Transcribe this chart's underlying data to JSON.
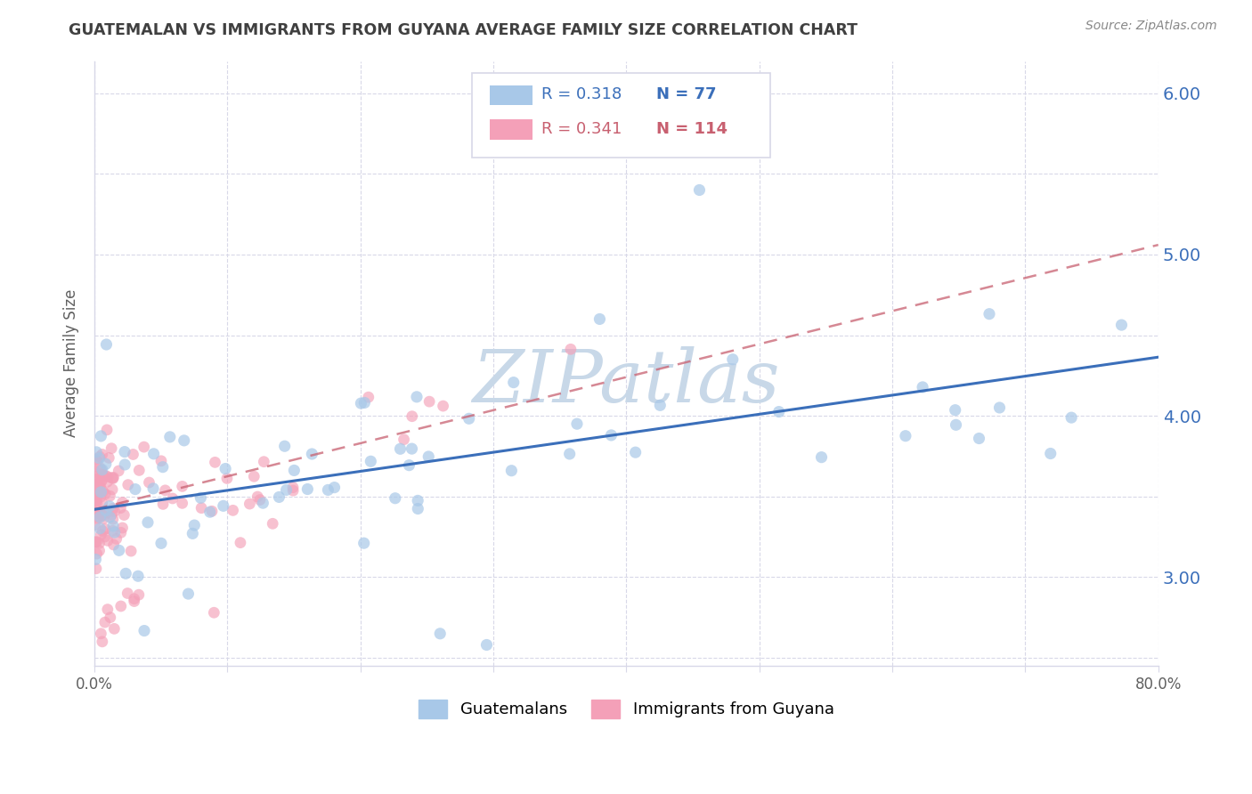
{
  "title": "GUATEMALAN VS IMMIGRANTS FROM GUYANA AVERAGE FAMILY SIZE CORRELATION CHART",
  "source": "Source: ZipAtlas.com",
  "ylabel": "Average Family Size",
  "R1": "0.318",
  "N1": "77",
  "R2": "0.341",
  "N2": "114",
  "legend_label1": "Guatemalans",
  "legend_label2": "Immigrants from Guyana",
  "blue_scatter_color": "#a8c8e8",
  "pink_scatter_color": "#f4a0b8",
  "blue_line_color": "#3b6fba",
  "pink_line_color": "#c86070",
  "grid_color": "#d8d8e8",
  "background_color": "#ffffff",
  "title_color": "#404040",
  "axis_label_color": "#606060",
  "tick_color_right": "#3b6fba",
  "tick_color_x": "#606060",
  "watermark_color": "#c8d8e8",
  "yticks_right": [
    3.0,
    4.0,
    5.0,
    6.0
  ],
  "ytick_labels_right": [
    "3.00",
    "4.00",
    "5.00",
    "6.00"
  ],
  "xlim": [
    0.0,
    0.8
  ],
  "ylim": [
    2.45,
    6.2
  ],
  "blue_intercept": 3.42,
  "blue_slope": 1.18,
  "pink_intercept": 3.42,
  "pink_slope": 2.05
}
